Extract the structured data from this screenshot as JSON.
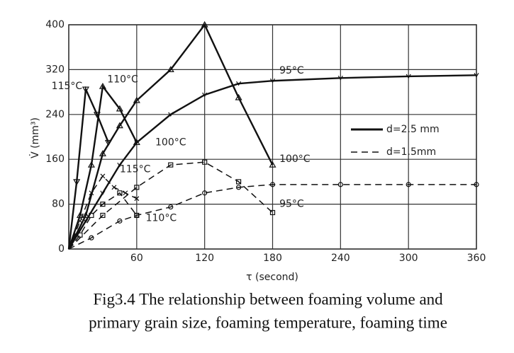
{
  "chart_data": {
    "type": "line",
    "xlabel": "τ (second)",
    "ylabel": "V̇ (mm³)",
    "caption": [
      "Fig3.4 The relationship between foaming volume and",
      "primary grain size, foaming temperature, foaming time"
    ],
    "xlim": [
      0,
      360
    ],
    "xticks": [
      60,
      120,
      180,
      240,
      300,
      360
    ],
    "ylim": [
      0,
      400
    ],
    "yticks": [
      0,
      80,
      160,
      240,
      320,
      400
    ],
    "grid": true,
    "legend": [
      {
        "label": "d=2.5 mm",
        "dash": "solid"
      },
      {
        "label": "d=1.5mm",
        "dash": "dashed"
      }
    ],
    "series": [
      {
        "name": "115°C",
        "color": "#111",
        "dash": "solid",
        "marker": "triangle-down",
        "x": [
          0,
          7,
          15,
          25,
          35
        ],
        "values": [
          0,
          120,
          285,
          240,
          190
        ]
      },
      {
        "name": "110°C",
        "color": "#111",
        "dash": "solid",
        "marker": "triangle",
        "x": [
          0,
          10,
          20,
          30,
          45,
          60
        ],
        "values": [
          0,
          60,
          150,
          290,
          250,
          190
        ]
      },
      {
        "name": "100°C",
        "color": "#111",
        "dash": "solid",
        "marker": "triangle",
        "x": [
          0,
          15,
          30,
          45,
          60,
          90,
          120,
          150,
          180
        ],
        "values": [
          0,
          60,
          170,
          220,
          265,
          320,
          400,
          270,
          150
        ]
      },
      {
        "name": "95°C",
        "color": "#111",
        "dash": "solid",
        "marker": "arrow",
        "x": [
          0,
          15,
          30,
          45,
          60,
          90,
          120,
          150,
          180,
          240,
          300,
          360
        ],
        "values": [
          0,
          50,
          100,
          150,
          190,
          240,
          275,
          295,
          300,
          305,
          308,
          310
        ]
      },
      {
        "name": "115°C",
        "color": "#111",
        "dash": "dashed",
        "marker": "cross",
        "x": [
          0,
          10,
          20,
          30,
          40,
          50,
          60
        ],
        "values": [
          0,
          50,
          100,
          130,
          110,
          100,
          90
        ]
      },
      {
        "name": "110°C",
        "color": "#111",
        "dash": "dashed",
        "marker": "square",
        "x": [
          0,
          10,
          20,
          30,
          45,
          60
        ],
        "values": [
          0,
          25,
          60,
          80,
          100,
          60
        ]
      },
      {
        "name": "100°C",
        "color": "#111",
        "dash": "dashed",
        "marker": "square",
        "x": [
          0,
          30,
          60,
          90,
          120,
          150,
          180
        ],
        "values": [
          0,
          60,
          110,
          150,
          155,
          120,
          65
        ]
      },
      {
        "name": "95°C",
        "color": "#111",
        "dash": "dashed",
        "marker": "circle",
        "x": [
          0,
          20,
          45,
          60,
          90,
          120,
          150,
          180,
          240,
          300,
          360
        ],
        "values": [
          0,
          20,
          50,
          60,
          75,
          100,
          110,
          115,
          115,
          115,
          115
        ]
      }
    ]
  }
}
